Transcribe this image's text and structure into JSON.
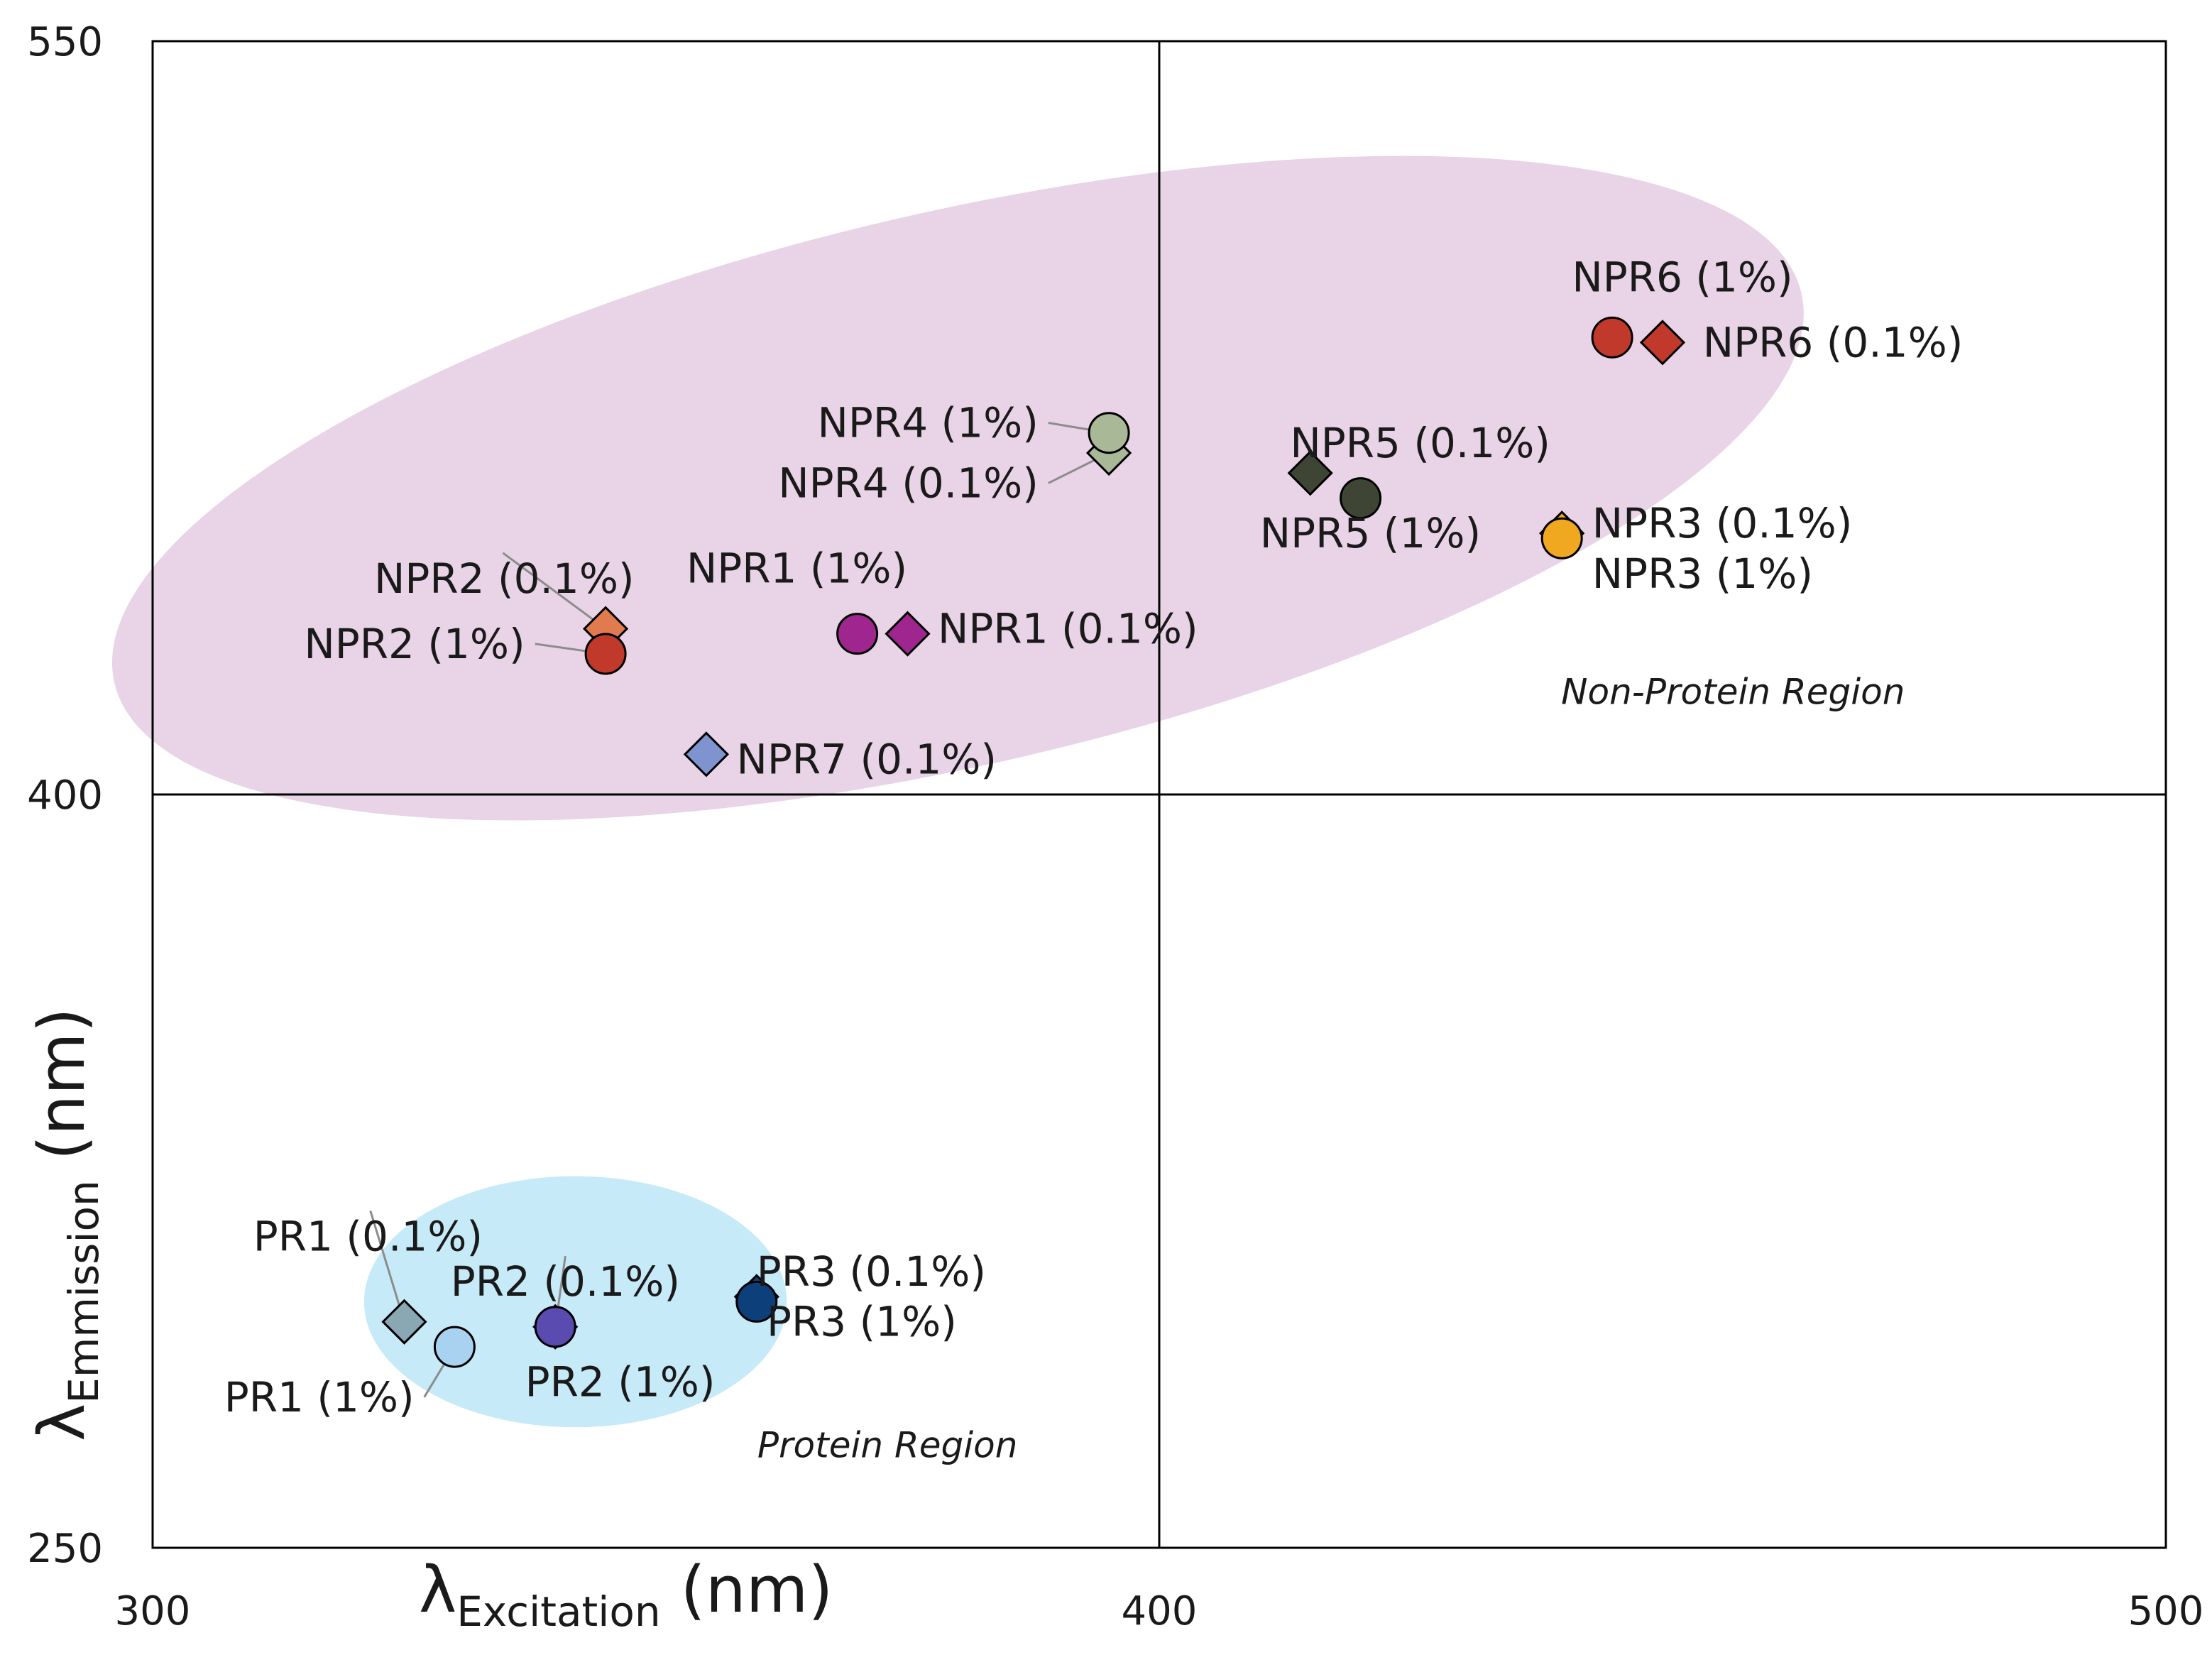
{
  "chart_data": {
    "type": "scatter",
    "title": "",
    "xlabel": {
      "symbol": "λ",
      "subscript": "Excitation",
      "unit": "(nm)"
    },
    "ylabel": {
      "symbol": "λ",
      "subscript": "Emmission",
      "unit": "(nm)"
    },
    "xlim": [
      300,
      500
    ],
    "ylim": [
      250,
      550
    ],
    "xticks": [
      "300",
      "400",
      "500"
    ],
    "yticks": [
      "250",
      "400",
      "550"
    ],
    "divider_x": 400,
    "divider_y": 400,
    "regions": [
      {
        "name": "Non-Protein Region",
        "color": "#e9d3e6",
        "cx": 380,
        "cy": 461,
        "rx": 86,
        "ry": 55,
        "angle_deg": -13,
        "label_x": 457,
        "label_y": 418
      },
      {
        "name": "Protein Region",
        "color": "#c6eaf8",
        "cx": 342,
        "cy": 299,
        "rx": 21,
        "ry": 25,
        "angle_deg": 0,
        "label_x": 373,
        "label_y": 268
      }
    ],
    "points": [
      {
        "label": "NPR6 (1%)",
        "x": 445,
        "y": 491,
        "shape": "circle",
        "color": "#c0392b",
        "lx": 441,
        "ly": 503,
        "anchor": "start",
        "leader": false
      },
      {
        "label": "NPR6 (0.1%)",
        "x": 450,
        "y": 490,
        "shape": "diamond",
        "color": "#c0392b",
        "lx": 454,
        "ly": 490,
        "anchor": "start",
        "leader": false
      },
      {
        "label": "NPR4 (1%)",
        "x": 395,
        "y": 472,
        "shape": "circle",
        "color": "#a9b896",
        "lx": 388,
        "ly": 474,
        "anchor": "end",
        "leader": true
      },
      {
        "label": "NPR4 (0.1%)",
        "x": 395,
        "y": 468,
        "shape": "diamond",
        "color": "#a9b896",
        "lx": 388,
        "ly": 462,
        "anchor": "end",
        "leader": true
      },
      {
        "label": "NPR5 (0.1%)",
        "x": 415,
        "y": 464,
        "shape": "diamond",
        "color": "#3e4535",
        "lx": 413,
        "ly": 470,
        "anchor": "start",
        "leader": false
      },
      {
        "label": "NPR5 (1%)",
        "x": 420,
        "y": 459,
        "shape": "circle",
        "color": "#3e4535",
        "lx": 410,
        "ly": 452,
        "anchor": "start",
        "leader": false
      },
      {
        "label": "NPR3 (0.1%)",
        "x": 440,
        "y": 452,
        "shape": "diamond",
        "color": "#f0a820",
        "lx": 443,
        "ly": 454,
        "anchor": "start",
        "leader": false
      },
      {
        "label": "NPR3 (1%)",
        "x": 440,
        "y": 451,
        "shape": "circle",
        "color": "#f0a820",
        "lx": 443,
        "ly": 444,
        "anchor": "start",
        "leader": false
      },
      {
        "label": "NPR2 (0.1%)",
        "x": 345,
        "y": 433,
        "shape": "diamond",
        "color": "#e27a4f",
        "lx": 322,
        "ly": 443,
        "anchor": "start",
        "leader": true
      },
      {
        "label": "NPR2 (1%)",
        "x": 345,
        "y": 428,
        "shape": "circle",
        "color": "#c0392b",
        "lx": 337,
        "ly": 430,
        "anchor": "end",
        "leader": true
      },
      {
        "label": "NPR1 (1%)",
        "x": 370,
        "y": 432,
        "shape": "circle",
        "color": "#a0268f",
        "lx": 364,
        "ly": 445,
        "anchor": "middle",
        "leader": false
      },
      {
        "label": "NPR1 (0.1%)",
        "x": 375,
        "y": 432,
        "shape": "diamond",
        "color": "#a0268f",
        "lx": 378,
        "ly": 433,
        "anchor": "start",
        "leader": false
      },
      {
        "label": "NPR7 (0.1%)",
        "x": 355,
        "y": 408,
        "shape": "diamond",
        "color": "#7f93cf",
        "lx": 358,
        "ly": 407,
        "anchor": "start",
        "leader": false
      },
      {
        "label": "PR1 (0.1%)",
        "x": 325,
        "y": 295,
        "shape": "diamond",
        "color": "#8aa7b4",
        "lx": 310,
        "ly": 312,
        "anchor": "start",
        "leader": true
      },
      {
        "label": "PR1 (1%)",
        "x": 330,
        "y": 290,
        "shape": "circle",
        "color": "#a8d2f0",
        "lx": 326,
        "ly": 280,
        "anchor": "end",
        "leader": true
      },
      {
        "label": "PR2 (0.1%)",
        "x": 340,
        "y": 294,
        "shape": "circle",
        "color": "#5a4bb0",
        "lx": 341,
        "ly": 303,
        "anchor": "middle",
        "leader": true
      },
      {
        "label": "PR2 (1%)",
        "x": 340,
        "y": 294,
        "shape": "diamond",
        "color": "#5a4bb0",
        "lx": 337,
        "ly": 283,
        "anchor": "start",
        "leader": false
      },
      {
        "label": "PR3 (0.1%)",
        "x": 360,
        "y": 300,
        "shape": "diamond",
        "color": "#0d3f7a",
        "lx": 360,
        "ly": 305,
        "anchor": "start",
        "leader": false
      },
      {
        "label": "PR3 (1%)",
        "x": 360,
        "y": 299,
        "shape": "circle",
        "color": "#0d3f7a",
        "lx": 361,
        "ly": 295,
        "anchor": "start",
        "leader": false
      }
    ]
  }
}
